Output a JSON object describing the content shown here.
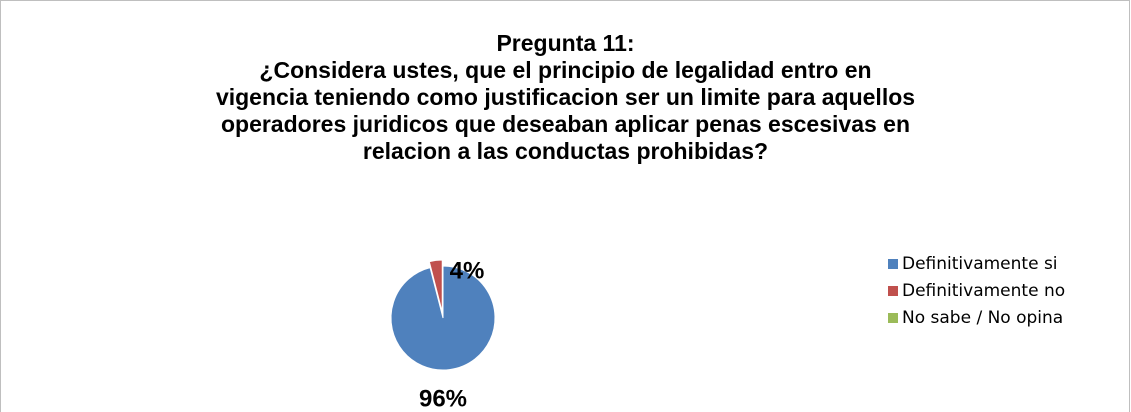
{
  "chart_data": {
    "type": "pie",
    "title": "Pregunta 11:\n¿Considera ustes, que el principio de legalidad entro en\nvigencia teniendo como justificacion ser un limite para aquellos\noperadores juridicos que deseaban aplicar penas escesivas en\nrelacion a las conductas prohibidas?",
    "categories": [
      "Definitivamente si",
      "Definitivamente no",
      "No sabe / No opina"
    ],
    "values": [
      96,
      4,
      0
    ],
    "value_labels": [
      "96%",
      "4%",
      null
    ],
    "colors": [
      "#4f81bd",
      "#c0504d",
      "#9bbb59"
    ],
    "legend": "right"
  }
}
